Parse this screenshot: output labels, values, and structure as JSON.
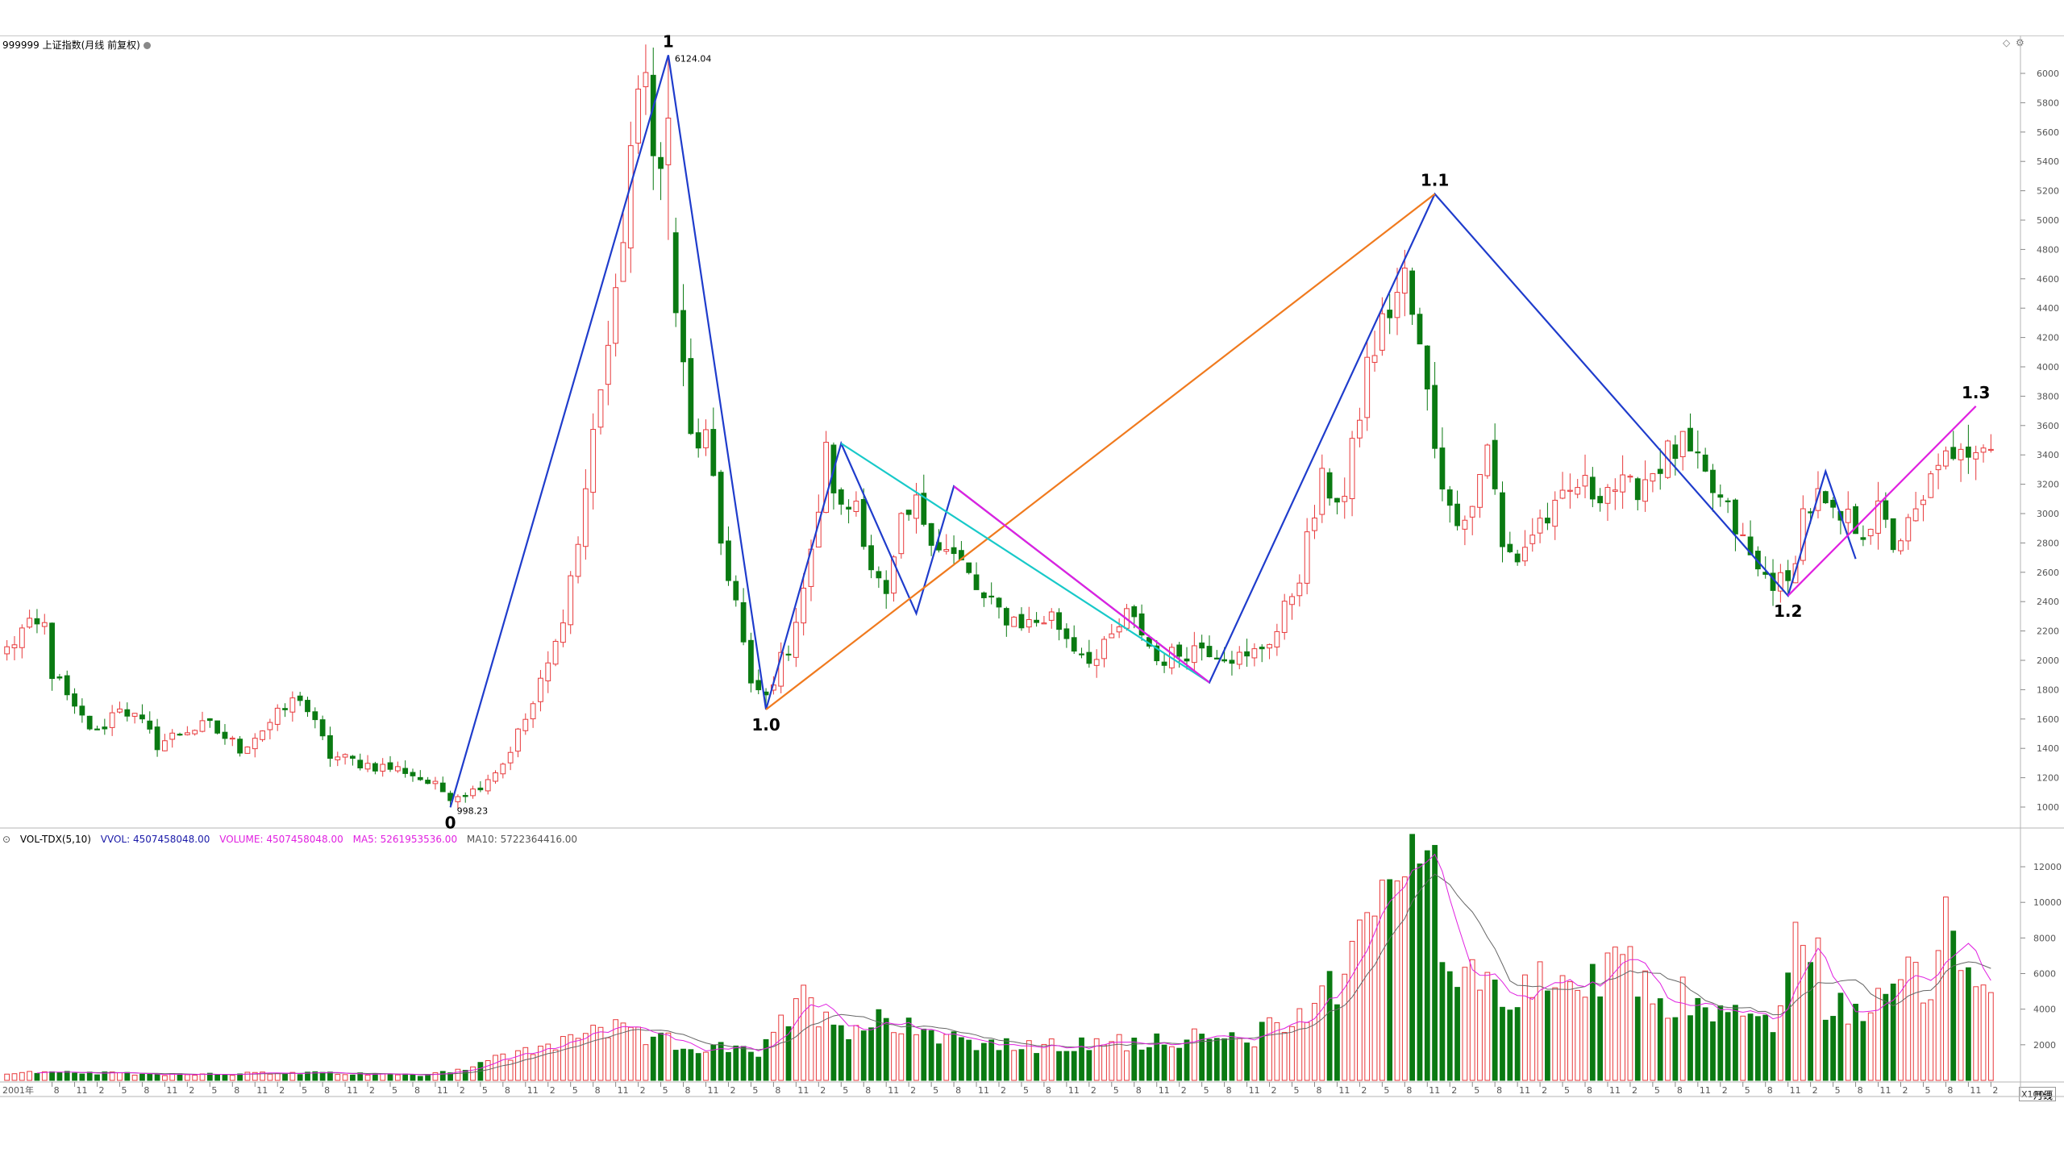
{
  "title": "999999 上证指数(月线 前复权)",
  "controls": {
    "diamond": "◇",
    "gear": "⚙"
  },
  "price_axis": {
    "ticks": [
      1000,
      1200,
      1400,
      1600,
      1800,
      2000,
      2200,
      2400,
      2600,
      2800,
      3000,
      3200,
      3400,
      3600,
      3800,
      4000,
      4200,
      4400,
      4600,
      4800,
      5000,
      5200,
      5400,
      5600,
      5800,
      6000
    ]
  },
  "vol_panel": {
    "indicator": "VOL-TDX(5,10)",
    "vvol_label": "VVOL: 4507458048.00",
    "volume_label": "VOLUME: 4507458048.00",
    "ma5_label": "MA5: 5261953536.00",
    "ma10_label": "MA10: 5722364416.00",
    "ticks": [
      2000,
      4000,
      6000,
      8000,
      10000,
      12000
    ],
    "unit": "X100万",
    "period": "月线"
  },
  "colors": {
    "up": "#e8393b",
    "down": "#0a7a12",
    "wave_main": "#1f3ccc",
    "wave_orange": "#f07a1e",
    "wave_cyan": "#18c9c9",
    "wave_magenta": "#e020e0",
    "ma5": "#e020e0",
    "ma10": "#666666"
  },
  "annotations": {
    "high_label": "6124.04",
    "low_label": "998.23",
    "wave_labels": [
      {
        "text": "0",
        "i": 59,
        "price": 998.23,
        "pos": "below"
      },
      {
        "text": "1",
        "i": 88,
        "price": 6124.04,
        "pos": "above"
      },
      {
        "text": "1.0",
        "i": 101,
        "price": 1664.9,
        "pos": "below"
      },
      {
        "text": "1.1",
        "i": 190,
        "price": 5178.19,
        "pos": "above"
      },
      {
        "text": "1.2",
        "i": 237,
        "price": 2440.91,
        "pos": "below"
      },
      {
        "text": "1.3",
        "i": 262,
        "price": 3731.69,
        "pos": "above"
      }
    ]
  },
  "x_axis": {
    "first_label": "2001年",
    "labels": [
      {
        "i": 6,
        "t": "8"
      },
      {
        "i": 9,
        "t": "11"
      },
      {
        "i": 12,
        "t": "2"
      },
      {
        "i": 15,
        "t": "5"
      },
      {
        "i": 18,
        "t": "8"
      },
      {
        "i": 21,
        "t": "11"
      },
      {
        "i": 24,
        "t": "2"
      },
      {
        "i": 27,
        "t": "5"
      },
      {
        "i": 30,
        "t": "8"
      },
      {
        "i": 33,
        "t": "11"
      },
      {
        "i": 36,
        "t": "2"
      },
      {
        "i": 39,
        "t": "5"
      },
      {
        "i": 42,
        "t": "8"
      },
      {
        "i": 45,
        "t": "11"
      },
      {
        "i": 48,
        "t": "2"
      },
      {
        "i": 51,
        "t": "5"
      },
      {
        "i": 54,
        "t": "8"
      },
      {
        "i": 57,
        "t": "11"
      },
      {
        "i": 60,
        "t": "2"
      },
      {
        "i": 63,
        "t": "5"
      },
      {
        "i": 66,
        "t": "8"
      },
      {
        "i": 69,
        "t": "11"
      },
      {
        "i": 72,
        "t": "2"
      },
      {
        "i": 75,
        "t": "5"
      },
      {
        "i": 78,
        "t": "8"
      },
      {
        "i": 81,
        "t": "11"
      },
      {
        "i": 84,
        "t": "2"
      },
      {
        "i": 87,
        "t": "5"
      },
      {
        "i": 90,
        "t": "8"
      },
      {
        "i": 93,
        "t": "11"
      },
      {
        "i": 96,
        "t": "2"
      },
      {
        "i": 99,
        "t": "5"
      },
      {
        "i": 102,
        "t": "8"
      },
      {
        "i": 105,
        "t": "11"
      },
      {
        "i": 108,
        "t": "2"
      },
      {
        "i": 111,
        "t": "5"
      },
      {
        "i": 114,
        "t": "8"
      },
      {
        "i": 117,
        "t": "11"
      },
      {
        "i": 120,
        "t": "2"
      },
      {
        "i": 123,
        "t": "5"
      },
      {
        "i": 126,
        "t": "8"
      },
      {
        "i": 129,
        "t": "11"
      },
      {
        "i": 132,
        "t": "2"
      },
      {
        "i": 135,
        "t": "5"
      },
      {
        "i": 138,
        "t": "8"
      },
      {
        "i": 141,
        "t": "11"
      },
      {
        "i": 144,
        "t": "2"
      },
      {
        "i": 147,
        "t": "5"
      },
      {
        "i": 150,
        "t": "8"
      },
      {
        "i": 153,
        "t": "11"
      },
      {
        "i": 156,
        "t": "2"
      },
      {
        "i": 159,
        "t": "5"
      },
      {
        "i": 162,
        "t": "8"
      },
      {
        "i": 165,
        "t": "11"
      },
      {
        "i": 168,
        "t": "2"
      },
      {
        "i": 171,
        "t": "5"
      },
      {
        "i": 174,
        "t": "8"
      },
      {
        "i": 177,
        "t": "11"
      },
      {
        "i": 180,
        "t": "2"
      },
      {
        "i": 183,
        "t": "5"
      },
      {
        "i": 186,
        "t": "8"
      },
      {
        "i": 189,
        "t": "11"
      },
      {
        "i": 192,
        "t": "2"
      },
      {
        "i": 195,
        "t": "5"
      },
      {
        "i": 198,
        "t": "8"
      },
      {
        "i": 201,
        "t": "11"
      },
      {
        "i": 204,
        "t": "2"
      },
      {
        "i": 207,
        "t": "5"
      },
      {
        "i": 210,
        "t": "8"
      },
      {
        "i": 213,
        "t": "11"
      },
      {
        "i": 216,
        "t": "2"
      },
      {
        "i": 219,
        "t": "5"
      },
      {
        "i": 222,
        "t": "8"
      },
      {
        "i": 225,
        "t": "11"
      },
      {
        "i": 228,
        "t": "2"
      },
      {
        "i": 231,
        "t": "5"
      },
      {
        "i": 234,
        "t": "8"
      },
      {
        "i": 237,
        "t": "11"
      },
      {
        "i": 240,
        "t": "2"
      },
      {
        "i": 243,
        "t": "5"
      },
      {
        "i": 246,
        "t": "8"
      },
      {
        "i": 249,
        "t": "11"
      },
      {
        "i": 252,
        "t": "2"
      },
      {
        "i": 255,
        "t": "5"
      },
      {
        "i": 258,
        "t": "8"
      },
      {
        "i": 261,
        "t": "11"
      },
      {
        "i": 264,
        "t": "2"
      }
    ]
  },
  "chart_data": {
    "type": "candlestick",
    "title": "999999 上证指数(月线 前复权)",
    "close_anchors": [
      {
        "i": 0,
        "c": 2070
      },
      {
        "i": 2,
        "c": 2200
      },
      {
        "i": 5,
        "c": 2230
      },
      {
        "i": 6,
        "c": 1920
      },
      {
        "i": 9,
        "c": 1650
      },
      {
        "i": 12,
        "c": 1500
      },
      {
        "i": 15,
        "c": 1700
      },
      {
        "i": 18,
        "c": 1560
      },
      {
        "i": 20,
        "c": 1430
      },
      {
        "i": 24,
        "c": 1530
      },
      {
        "i": 27,
        "c": 1550
      },
      {
        "i": 31,
        "c": 1400
      },
      {
        "i": 36,
        "c": 1620
      },
      {
        "i": 39,
        "c": 1760
      },
      {
        "i": 43,
        "c": 1350
      },
      {
        "i": 48,
        "c": 1290
      },
      {
        "i": 53,
        "c": 1250
      },
      {
        "i": 57,
        "c": 1140
      },
      {
        "i": 59,
        "c": 1080
      },
      {
        "i": 62,
        "c": 1110
      },
      {
        "i": 66,
        "c": 1300
      },
      {
        "i": 70,
        "c": 1700
      },
      {
        "i": 73,
        "c": 2100
      },
      {
        "i": 76,
        "c": 2800
      },
      {
        "i": 79,
        "c": 3900
      },
      {
        "i": 81,
        "c": 4400
      },
      {
        "i": 83,
        "c": 5500
      },
      {
        "i": 85,
        "c": 5960
      },
      {
        "i": 87,
        "c": 5300
      },
      {
        "i": 89,
        "c": 4400
      },
      {
        "i": 91,
        "c": 3500
      },
      {
        "i": 93,
        "c": 3500
      },
      {
        "i": 95,
        "c": 2800
      },
      {
        "i": 97,
        "c": 2400
      },
      {
        "i": 99,
        "c": 1800
      },
      {
        "i": 101,
        "c": 1780
      },
      {
        "i": 104,
        "c": 2100
      },
      {
        "i": 107,
        "c": 2700
      },
      {
        "i": 109,
        "c": 3400
      },
      {
        "i": 111,
        "c": 3000
      },
      {
        "i": 113,
        "c": 3100
      },
      {
        "i": 115,
        "c": 2650
      },
      {
        "i": 117,
        "c": 2400
      },
      {
        "i": 119,
        "c": 2900
      },
      {
        "i": 121,
        "c": 3050
      },
      {
        "i": 124,
        "c": 2800
      },
      {
        "i": 127,
        "c": 2650
      },
      {
        "i": 130,
        "c": 2400
      },
      {
        "i": 133,
        "c": 2300
      },
      {
        "i": 136,
        "c": 2250
      },
      {
        "i": 139,
        "c": 2300
      },
      {
        "i": 142,
        "c": 2100
      },
      {
        "i": 145,
        "c": 2000
      },
      {
        "i": 147,
        "c": 2150
      },
      {
        "i": 149,
        "c": 2300
      },
      {
        "i": 151,
        "c": 2200
      },
      {
        "i": 153,
        "c": 2000
      },
      {
        "i": 156,
        "c": 2050
      },
      {
        "i": 159,
        "c": 2100
      },
      {
        "i": 162,
        "c": 2050
      },
      {
        "i": 165,
        "c": 2000
      },
      {
        "i": 169,
        "c": 2200
      },
      {
        "i": 172,
        "c": 2600
      },
      {
        "i": 175,
        "c": 3200
      },
      {
        "i": 178,
        "c": 3100
      },
      {
        "i": 181,
        "c": 4000
      },
      {
        "i": 184,
        "c": 4400
      },
      {
        "i": 186,
        "c": 4600
      },
      {
        "i": 188,
        "c": 4100
      },
      {
        "i": 190,
        "c": 3500
      },
      {
        "i": 192,
        "c": 3000
      },
      {
        "i": 195,
        "c": 3050
      },
      {
        "i": 197,
        "c": 3500
      },
      {
        "i": 199,
        "c": 2750
      },
      {
        "i": 201,
        "c": 2700
      },
      {
        "i": 204,
        "c": 2950
      },
      {
        "i": 206,
        "c": 3000
      },
      {
        "i": 209,
        "c": 3200
      },
      {
        "i": 211,
        "c": 3150
      },
      {
        "i": 213,
        "c": 3200
      },
      {
        "i": 216,
        "c": 3150
      },
      {
        "i": 219,
        "c": 3300
      },
      {
        "i": 221,
        "c": 3400
      },
      {
        "i": 223,
        "c": 3450
      },
      {
        "i": 225,
        "c": 3300
      },
      {
        "i": 227,
        "c": 3150
      },
      {
        "i": 229,
        "c": 3000
      },
      {
        "i": 231,
        "c": 2800
      },
      {
        "i": 233,
        "c": 2600
      },
      {
        "i": 235,
        "c": 2550
      },
      {
        "i": 237,
        "c": 2500
      },
      {
        "i": 239,
        "c": 3000
      },
      {
        "i": 241,
        "c": 3100
      },
      {
        "i": 243,
        "c": 2950
      },
      {
        "i": 245,
        "c": 2950
      },
      {
        "i": 247,
        "c": 2900
      },
      {
        "i": 249,
        "c": 3000
      },
      {
        "i": 251,
        "c": 2800
      },
      {
        "i": 253,
        "c": 2900
      },
      {
        "i": 255,
        "c": 3050
      },
      {
        "i": 257,
        "c": 3400
      },
      {
        "i": 259,
        "c": 3300
      },
      {
        "i": 261,
        "c": 3450
      },
      {
        "i": 263,
        "c": 3550
      },
      {
        "i": 264,
        "c": 3500
      }
    ],
    "volume_anchors": [
      {
        "i": 0,
        "v": 450
      },
      {
        "i": 20,
        "v": 350
      },
      {
        "i": 40,
        "v": 400
      },
      {
        "i": 55,
        "v": 300
      },
      {
        "i": 60,
        "v": 600
      },
      {
        "i": 65,
        "v": 1200
      },
      {
        "i": 72,
        "v": 1800
      },
      {
        "i": 78,
        "v": 3100
      },
      {
        "i": 83,
        "v": 2500
      },
      {
        "i": 90,
        "v": 2000
      },
      {
        "i": 100,
        "v": 1500
      },
      {
        "i": 106,
        "v": 4500
      },
      {
        "i": 112,
        "v": 3000
      },
      {
        "i": 118,
        "v": 3500
      },
      {
        "i": 125,
        "v": 2500
      },
      {
        "i": 135,
        "v": 1800
      },
      {
        "i": 145,
        "v": 2000
      },
      {
        "i": 155,
        "v": 2400
      },
      {
        "i": 165,
        "v": 2200
      },
      {
        "i": 172,
        "v": 3800
      },
      {
        "i": 178,
        "v": 6000
      },
      {
        "i": 183,
        "v": 12000
      },
      {
        "i": 186,
        "v": 13000
      },
      {
        "i": 188,
        "v": 10000
      },
      {
        "i": 191,
        "v": 6000
      },
      {
        "i": 195,
        "v": 7000
      },
      {
        "i": 200,
        "v": 4000
      },
      {
        "i": 205,
        "v": 6000
      },
      {
        "i": 210,
        "v": 5000
      },
      {
        "i": 215,
        "v": 6500
      },
      {
        "i": 220,
        "v": 4500
      },
      {
        "i": 226,
        "v": 4000
      },
      {
        "i": 232,
        "v": 3500
      },
      {
        "i": 235,
        "v": 3200
      },
      {
        "i": 238,
        "v": 7500
      },
      {
        "i": 241,
        "v": 4500
      },
      {
        "i": 246,
        "v": 4000
      },
      {
        "i": 250,
        "v": 5000
      },
      {
        "i": 253,
        "v": 6500
      },
      {
        "i": 256,
        "v": 4000
      },
      {
        "i": 258,
        "v": 8500
      },
      {
        "i": 260,
        "v": 5000
      },
      {
        "i": 262,
        "v": 6500
      },
      {
        "i": 264,
        "v": 4500
      }
    ],
    "volume_spikes": [
      {
        "i": 189,
        "v": 12900
      },
      {
        "i": 190,
        "v": 13200
      },
      {
        "i": 185,
        "v": 11200
      },
      {
        "i": 241,
        "v": 8000
      },
      {
        "i": 258,
        "v": 10300
      },
      {
        "i": 223,
        "v": 5800
      }
    ],
    "high_override": [
      {
        "i": 88,
        "h": 6124.04
      }
    ],
    "low_override": [
      {
        "i": 59,
        "l": 998.23
      },
      {
        "i": 101,
        "l": 1664.9
      }
    ],
    "wave_lines": [
      {
        "color": "wave_main",
        "points": [
          [
            59,
            998.23
          ],
          [
            88,
            6124.04
          ],
          [
            101,
            1664.9
          ],
          [
            111,
            3478
          ],
          [
            121,
            2319
          ],
          [
            126,
            3186
          ],
          [
            160,
            1849
          ],
          [
            190,
            5178.19
          ],
          [
            237,
            2440.91
          ],
          [
            242,
            3288
          ],
          [
            246,
            2691
          ]
        ]
      },
      {
        "color": "wave_orange",
        "points": [
          [
            101,
            1664.9
          ],
          [
            190,
            5178.19
          ]
        ]
      },
      {
        "color": "wave_cyan",
        "points": [
          [
            111,
            3478
          ],
          [
            160,
            1849
          ]
        ]
      },
      {
        "color": "wave_magenta",
        "points": [
          [
            126,
            3186
          ],
          [
            160,
            1849
          ]
        ]
      },
      {
        "color": "wave_magenta",
        "points": [
          [
            237,
            2440.91
          ],
          [
            262,
            3731.69
          ]
        ]
      }
    ],
    "ylim": [
      900,
      6300
    ]
  }
}
